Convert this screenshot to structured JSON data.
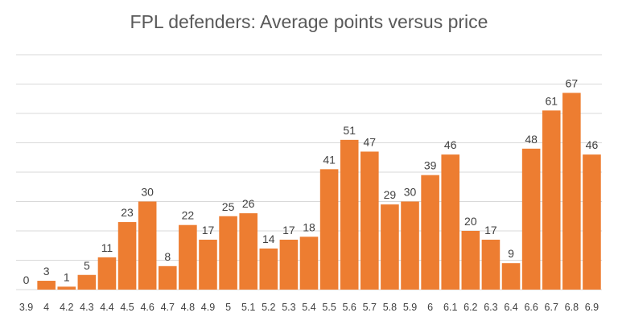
{
  "chart_data": {
    "type": "bar",
    "title": "FPL defenders: Average points versus price",
    "xlabel": "",
    "ylabel": "",
    "categories": [
      "3.9",
      "4",
      "4.2",
      "4.3",
      "4.4",
      "4.5",
      "4.6",
      "4.7",
      "4.8",
      "4.9",
      "5",
      "5.1",
      "5.2",
      "5.3",
      "5.4",
      "5.5",
      "5.6",
      "5.7",
      "5.8",
      "5.9",
      "6",
      "6.1",
      "6.2",
      "6.3",
      "6.4",
      "6.6",
      "6.7",
      "6.8",
      "6.9"
    ],
    "values": [
      0,
      3,
      1,
      5,
      11,
      23,
      30,
      8,
      22,
      17,
      25,
      26,
      14,
      17,
      18,
      41,
      51,
      47,
      29,
      30,
      39,
      46,
      20,
      17,
      9,
      48,
      61,
      67,
      46
    ],
    "ylim": [
      0,
      80
    ],
    "grid": true,
    "legend": "none",
    "bar_color": "#ED7D31",
    "grid_color": "#D9D9D9"
  }
}
